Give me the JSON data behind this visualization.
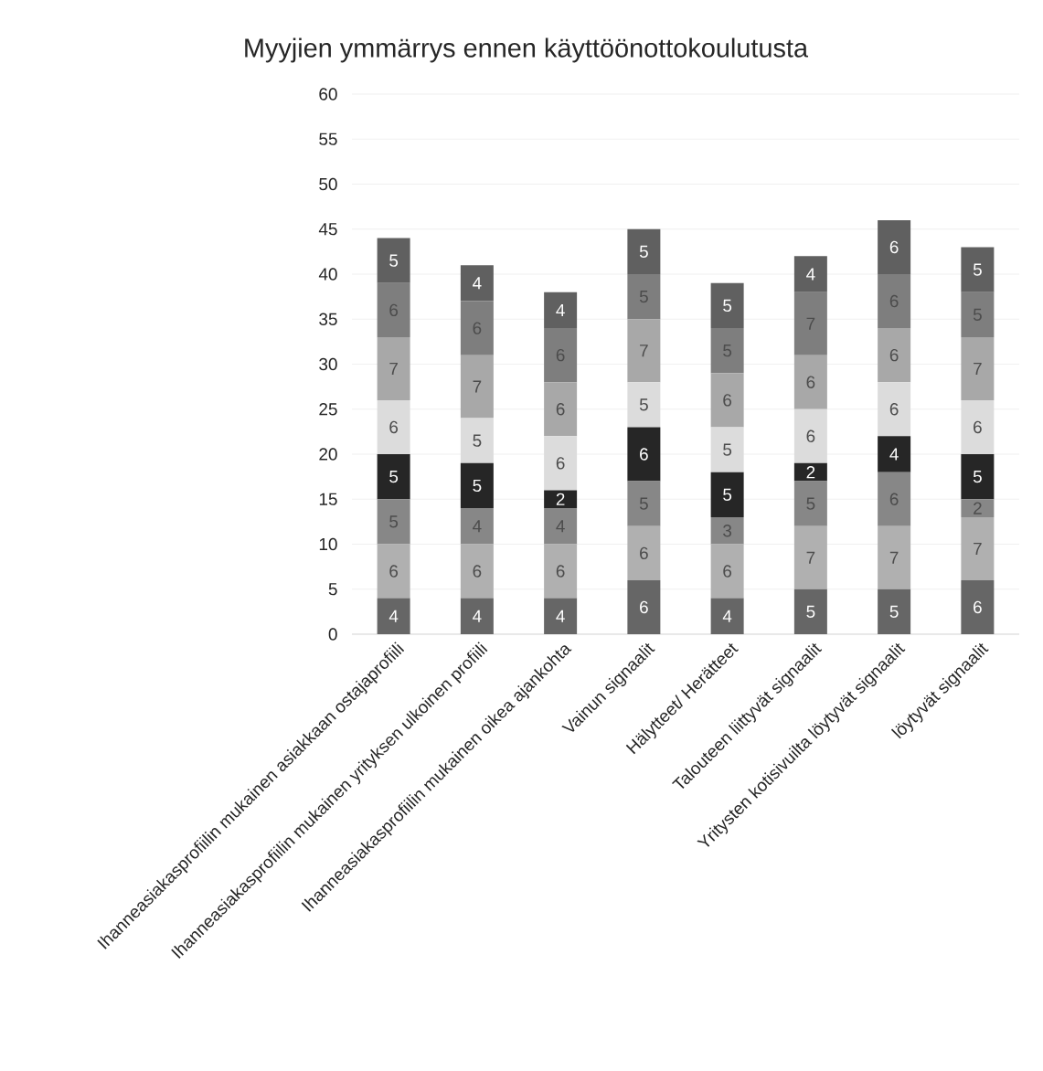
{
  "chart_data": {
    "type": "bar",
    "title": "Myyjien ymmärrys ennen käyttöönottokoulutusta",
    "stacked": true,
    "data_labels": true,
    "grid": "y",
    "categories": [
      "Ihanneasiakasprofiilin mukainen asiakkaan ostajaprofiili",
      "Ihanneasiakasprofiilin mukainen yrityksen ulkoinen profiili",
      "Ihanneasiakasprofiilin mukainen oikea ajankohta",
      "Vainun signaalit",
      "Hälytteet/ Herätteet",
      "Talouteen liittyvät signaalit",
      "Yritysten kotisivuilta löytyvät signaalit",
      "löytyvät signaalit"
    ],
    "ylim": [
      0,
      60
    ],
    "yticks": [
      0,
      5,
      10,
      15,
      20,
      25,
      30,
      35,
      40,
      45,
      50,
      55,
      60
    ],
    "series": [
      {
        "color": "#666666",
        "values": [
          4,
          4,
          4,
          6,
          4,
          5,
          5,
          6
        ]
      },
      {
        "color": "#b0b0b0",
        "values": [
          6,
          6,
          6,
          6,
          6,
          7,
          7,
          7
        ]
      },
      {
        "color": "#878787",
        "values": [
          5,
          4,
          4,
          5,
          3,
          5,
          6,
          2
        ]
      },
      {
        "color": "#262626",
        "values": [
          5,
          5,
          2,
          6,
          5,
          2,
          4,
          5
        ]
      },
      {
        "color": "#dcdcdc",
        "values": [
          6,
          5,
          6,
          5,
          5,
          6,
          6,
          6
        ]
      },
      {
        "color": "#a8a8a8",
        "values": [
          7,
          7,
          6,
          7,
          6,
          6,
          6,
          7
        ]
      },
      {
        "color": "#7e7e7e",
        "values": [
          6,
          6,
          6,
          5,
          5,
          7,
          6,
          5
        ]
      },
      {
        "color": "#606060",
        "values": [
          5,
          4,
          4,
          5,
          5,
          4,
          6,
          5
        ]
      }
    ]
  }
}
